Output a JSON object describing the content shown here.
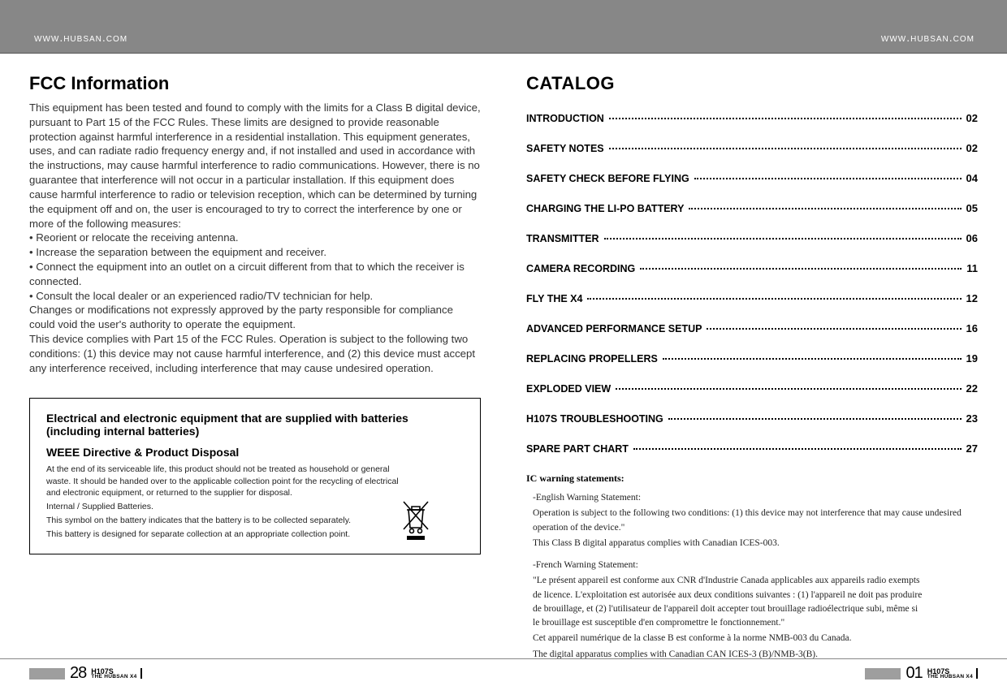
{
  "header": {
    "url": "www.hubsan.com"
  },
  "leftPage": {
    "title": "FCC Information",
    "body": "This equipment has been tested and found to comply with the limits for a Class B digital device, pursuant to Part 15 of the FCC Rules. These limits are designed to provide reasonable protection against harmful interference in a residential installation. This equipment generates, uses, and can radiate radio frequency energy and, if not installed and used in accordance with the instructions, may cause harmful interference to radio communications. However, there is no guarantee that interference will not occur in a particular installation. If this equipment does cause harmful interference to radio or television reception, which can be determined by turning the equipment off and on, the user is encouraged to try to correct the interference by one or more of the following measures:",
    "bullets": [
      "• Reorient or relocate the receiving antenna.",
      "• Increase the separation between the equipment and receiver.",
      "• Connect the equipment into an outlet on a circuit different from that to which the receiver is connected.",
      "• Consult the local dealer or an experienced radio/TV technician for help."
    ],
    "body2": "Changes or modifications not expressly approved by the party responsible for compliance could void the user's authority to operate the equipment.",
    "body3": "This device complies with Part 15 of the FCC Rules. Operation is subject to the following two conditions: (1) this device may not cause harmful interference, and (2) this device must accept any interference received, including interference that may cause undesired operation.",
    "weee": {
      "title1": "Electrical and electronic equipment that are supplied with batteries (including internal batteries)",
      "title2": "WEEE Directive & Product Disposal",
      "p1": "At the end of its serviceable life, this product should not be treated as household or general waste. It should be handed over to the applicable collection point for the recycling of electrical and electronic equipment, or returned to the supplier for disposal.",
      "p2": "Internal / Supplied Batteries.",
      "p3": "This symbol on the battery indicates that the battery is to be collected separately.",
      "p4": "This battery is designed for separate collection at an appropriate collection point."
    }
  },
  "rightPage": {
    "title": "CATALOG",
    "toc": [
      {
        "label": "INTRODUCTION",
        "page": "02"
      },
      {
        "label": "SAFETY NOTES",
        "page": "02"
      },
      {
        "label": "SAFETY CHECK BEFORE FLYING",
        "page": "04"
      },
      {
        "label": "CHARGING THE LI-PO BATTERY",
        "page": "05"
      },
      {
        "label": "TRANSMITTER",
        "page": "06"
      },
      {
        "label": "CAMERA RECORDING",
        "page": "11"
      },
      {
        "label": "FLY THE X4",
        "page": "12"
      },
      {
        "label": "ADVANCED PERFORMANCE SETUP",
        "page": "16"
      },
      {
        "label": "REPLACING PROPELLERS",
        "page": "19"
      },
      {
        "label": "EXPLODED VIEW",
        "page": "22"
      },
      {
        "label": "H107S TROUBLESHOOTING",
        "page": "23"
      },
      {
        "label": "SPARE PART CHART",
        "page": "27"
      }
    ],
    "ic": {
      "heading": "IC warning statements:",
      "en_title": "-English Warning Statement:",
      "en_p1": "Operation is subject to the following two conditions: (1) this device may not interference that may cause undesired operation of the device.\"",
      "en_p2": "This Class B digital apparatus complies with Canadian ICES-003.",
      "fr_title": "-French Warning Statement:",
      "fr_p1": "\"Le présent appareil est conforme aux CNR d'Industrie Canada applicables aux appareils radio exempts de licence. L'exploitation est autorisée aux deux conditions suivantes : (1) l'appareil ne doit pas produire de brouillage, et (2) l'utilisateur de l'appareil doit accepter tout brouillage radioélectrique subi, même si le brouillage est susceptible d'en compromettre le fonctionnement.\"",
      "fr_p2": "Cet appareil numérique de la classe B est conforme à la norme NMB-003 du Canada.",
      "fr_p3": "The digital apparatus complies with Canadian CAN ICES‐3 (B)/NMB‐3(B)."
    }
  },
  "footer": {
    "leftNum": "28",
    "rightNum": "01",
    "model": "H107S",
    "subtitle": "THE HUBSAN X4"
  },
  "colors": {
    "headerBg": "#878787",
    "text": "#333333",
    "footerGray": "#9e9e9e"
  }
}
